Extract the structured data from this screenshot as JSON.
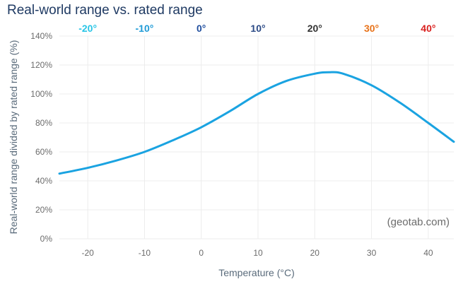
{
  "chart_data": {
    "type": "line",
    "title": "Real-world range vs. rated range",
    "xlabel": "Temperature (°C)",
    "ylabel": "Real-world range divided by rated range (%)",
    "xlim": [
      -25,
      44.5
    ],
    "ylim": [
      0,
      140
    ],
    "x_ticks": [
      -20,
      -10,
      0,
      10,
      20,
      30,
      40
    ],
    "y_ticks": [
      0,
      20,
      40,
      60,
      80,
      100,
      120,
      140
    ],
    "y_tick_suffix": "%",
    "grid": true,
    "series": [
      {
        "color": "#1aa3e1",
        "points": [
          {
            "x": -25,
            "y": 45
          },
          {
            "x": -20,
            "y": 49
          },
          {
            "x": -15,
            "y": 54
          },
          {
            "x": -10,
            "y": 60
          },
          {
            "x": -5,
            "y": 68
          },
          {
            "x": 0,
            "y": 77
          },
          {
            "x": 5,
            "y": 88
          },
          {
            "x": 10,
            "y": 100
          },
          {
            "x": 15,
            "y": 109
          },
          {
            "x": 20,
            "y": 114
          },
          {
            "x": 22.5,
            "y": 115
          },
          {
            "x": 25,
            "y": 114
          },
          {
            "x": 30,
            "y": 106
          },
          {
            "x": 35,
            "y": 94
          },
          {
            "x": 40,
            "y": 80
          },
          {
            "x": 44.5,
            "y": 67
          }
        ]
      }
    ],
    "top_temperature_labels": [
      {
        "x": -20,
        "label": "-20°",
        "color": "#29c5e6"
      },
      {
        "x": -10,
        "label": "-10°",
        "color": "#1f9bd7"
      },
      {
        "x": 0,
        "label": "0°",
        "color": "#1f4e9e"
      },
      {
        "x": 10,
        "label": "10°",
        "color": "#2b4a86"
      },
      {
        "x": 20,
        "label": "20°",
        "color": "#333333"
      },
      {
        "x": 30,
        "label": "30°",
        "color": "#e8731a"
      },
      {
        "x": 40,
        "label": "40°",
        "color": "#d9201e"
      }
    ],
    "watermark": "(geotab.com)"
  }
}
